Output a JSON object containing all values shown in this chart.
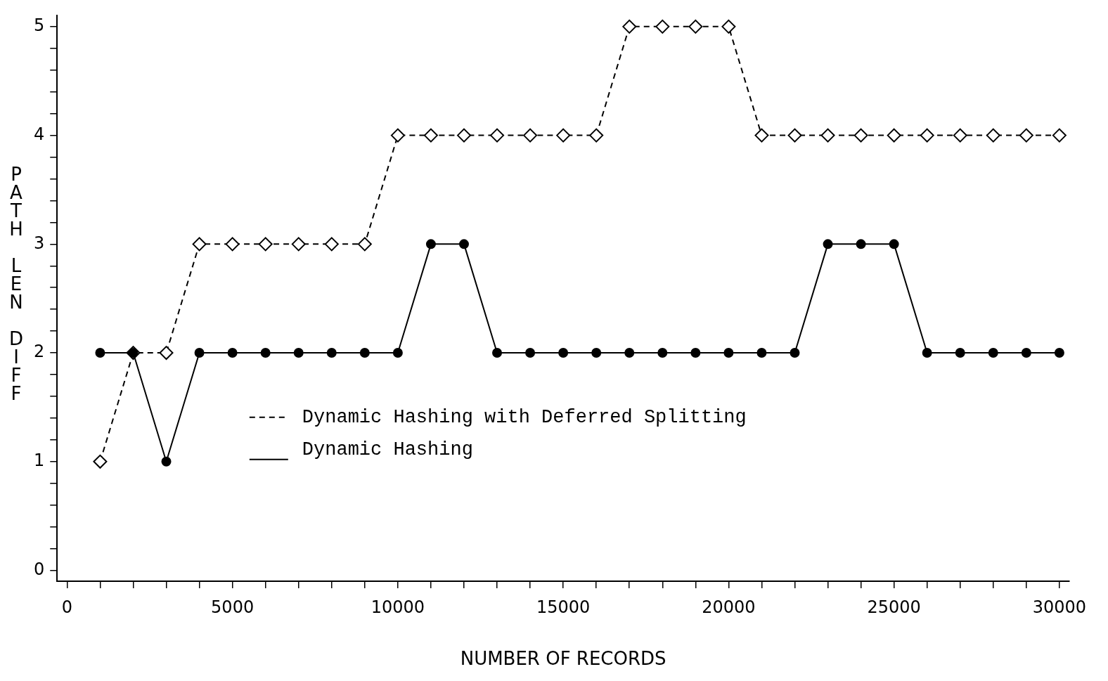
{
  "chart_data": {
    "type": "line",
    "xlabel": "NUMBER OF RECORDS",
    "ylabel": "PATH LEN DIFF",
    "x": [
      1000,
      2000,
      3000,
      4000,
      5000,
      6000,
      7000,
      8000,
      9000,
      10000,
      11000,
      12000,
      13000,
      14000,
      15000,
      16000,
      17000,
      18000,
      19000,
      20000,
      21000,
      22000,
      23000,
      24000,
      25000,
      26000,
      27000,
      28000,
      29000,
      30000
    ],
    "series": [
      {
        "name": "Dynamic Hashing with Deferred Splitting",
        "color": "#000000",
        "line_style": "dashed",
        "marker": "diamond",
        "values": [
          1,
          2,
          2,
          3,
          3,
          3,
          3,
          3,
          3,
          4,
          4,
          4,
          4,
          4,
          4,
          4,
          5,
          5,
          5,
          5,
          4,
          4,
          4,
          4,
          4,
          4,
          4,
          4,
          4,
          4
        ]
      },
      {
        "name": "Dynamic Hashing",
        "color": "#000000",
        "line_style": "solid",
        "marker": "circle",
        "values": [
          2,
          2,
          1,
          2,
          2,
          2,
          2,
          2,
          2,
          2,
          3,
          3,
          2,
          2,
          2,
          2,
          2,
          2,
          2,
          2,
          2,
          2,
          3,
          3,
          3,
          2,
          2,
          2,
          2,
          2
        ]
      }
    ],
    "xlim": [
      -300,
      30300
    ],
    "ylim": [
      -0.1,
      5.1
    ],
    "xticks": [
      0,
      {
        "value": 1000,
        "label": null
      },
      {
        "value": 2000,
        "label": null
      },
      {
        "value": 3000,
        "label": null
      },
      {
        "value": 4000,
        "label": null
      },
      5000,
      {
        "value": 6000,
        "label": null
      },
      {
        "value": 7000,
        "label": null
      },
      {
        "value": 8000,
        "label": null
      },
      {
        "value": 9000,
        "label": null
      },
      10000,
      {
        "value": 11000,
        "label": null
      },
      {
        "value": 12000,
        "label": null
      },
      {
        "value": 13000,
        "label": null
      },
      {
        "value": 14000,
        "label": null
      },
      15000,
      {
        "value": 16000,
        "label": null
      },
      {
        "value": 17000,
        "label": null
      },
      {
        "value": 18000,
        "label": null
      },
      {
        "value": 19000,
        "label": null
      },
      20000,
      {
        "value": 21000,
        "label": null
      },
      {
        "value": 22000,
        "label": null
      },
      {
        "value": 23000,
        "label": null
      },
      {
        "value": 24000,
        "label": null
      },
      25000,
      {
        "value": 26000,
        "label": null
      },
      {
        "value": 27000,
        "label": null
      },
      {
        "value": 28000,
        "label": null
      },
      {
        "value": 29000,
        "label": null
      },
      30000
    ],
    "yticks": [
      0,
      {
        "value": 0.2,
        "label": null
      },
      {
        "value": 0.4,
        "label": null
      },
      {
        "value": 0.6,
        "label": null
      },
      {
        "value": 0.8,
        "label": null
      },
      1,
      {
        "value": 1.2,
        "label": null
      },
      {
        "value": 1.4,
        "label": null
      },
      {
        "value": 1.6,
        "label": null
      },
      {
        "value": 1.8,
        "label": null
      },
      2,
      {
        "value": 2.2,
        "label": null
      },
      {
        "value": 2.4,
        "label": null
      },
      {
        "value": 2.6,
        "label": null
      },
      {
        "value": 2.8,
        "label": null
      },
      3,
      {
        "value": 3.2,
        "label": null
      },
      {
        "value": 3.4,
        "label": null
      },
      {
        "value": 3.6,
        "label": null
      },
      {
        "value": 3.8,
        "label": null
      },
      4,
      {
        "value": 4.2,
        "label": null
      },
      {
        "value": 4.4,
        "label": null
      },
      {
        "value": 4.6,
        "label": null
      },
      {
        "value": 4.8,
        "label": null
      },
      5
    ],
    "grid": false,
    "legend": "center left"
  }
}
